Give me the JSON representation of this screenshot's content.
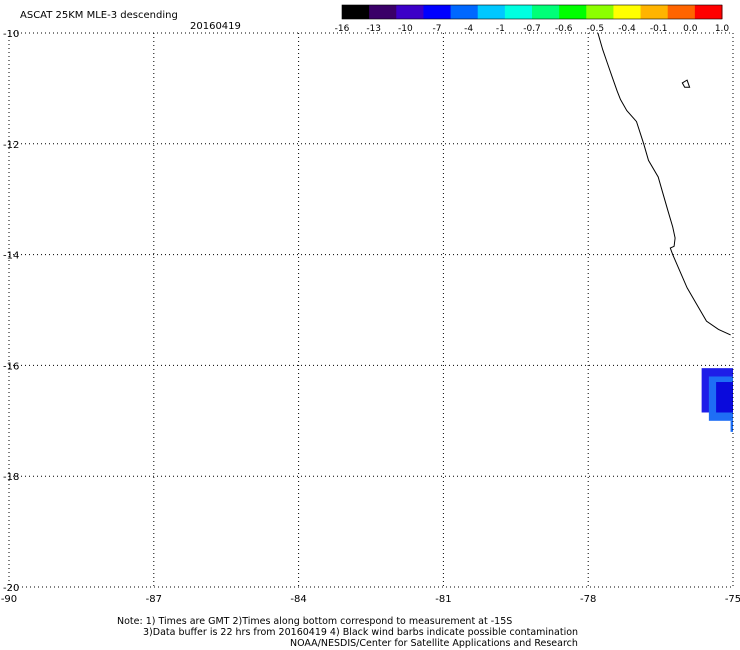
{
  "title": "ASCAT 25KM MLE-3 descending",
  "date": "20160419",
  "map": {
    "lon_range": [
      -90,
      -75
    ],
    "lat_range": [
      -20,
      -10
    ],
    "x_ticks": [
      -90,
      -87,
      -84,
      -81,
      -78,
      -75
    ],
    "x_tick_labels": [
      "-90",
      "-87",
      "-84",
      "-81",
      "-78",
      "-75"
    ],
    "y_ticks": [
      -10,
      -12,
      -14,
      -16,
      -18,
      -20
    ],
    "y_tick_labels": [
      "-10",
      "-12",
      "-14",
      "-16",
      "-18",
      "-20"
    ],
    "grid": "dotted",
    "coastline": [
      [
        -77.8,
        -10.0
      ],
      [
        -77.7,
        -10.3
      ],
      [
        -77.6,
        -10.55
      ],
      [
        -77.5,
        -10.8
      ],
      [
        -77.4,
        -11.05
      ],
      [
        -77.33,
        -11.2
      ],
      [
        -77.2,
        -11.4
      ],
      [
        -77.0,
        -11.6
      ],
      [
        -76.85,
        -12.0
      ],
      [
        -76.75,
        -12.3
      ],
      [
        -76.55,
        -12.6
      ],
      [
        -76.45,
        -12.9
      ],
      [
        -76.35,
        -13.2
      ],
      [
        -76.25,
        -13.5
      ],
      [
        -76.2,
        -13.7
      ],
      [
        -76.22,
        -13.85
      ],
      [
        -76.3,
        -13.88
      ],
      [
        -76.25,
        -14.0
      ],
      [
        -76.1,
        -14.3
      ],
      [
        -75.95,
        -14.6
      ],
      [
        -75.75,
        -14.9
      ],
      [
        -75.55,
        -15.2
      ],
      [
        -75.3,
        -15.35
      ],
      [
        -75.05,
        -15.45
      ]
    ],
    "island": [
      [
        -76.05,
        -10.9
      ],
      [
        -75.95,
        -10.85
      ],
      [
        -75.9,
        -10.98
      ],
      [
        -76.0,
        -10.98
      ]
    ],
    "swath_cells": [
      {
        "lon": [
          -75.65,
          -75.0
        ],
        "lat": [
          -16.05,
          -16.85
        ],
        "color": "#1e1ee8"
      },
      {
        "lon": [
          -75.5,
          -75.0
        ],
        "lat": [
          -16.2,
          -17.0
        ],
        "color": "#1e6ef5"
      },
      {
        "lon": [
          -75.35,
          -75.0
        ],
        "lat": [
          -16.3,
          -16.85
        ],
        "color": "#0a0adc"
      },
      {
        "lon": [
          -75.05,
          -75.0
        ],
        "lat": [
          -17.0,
          -17.2
        ],
        "color": "#1e6ef5"
      }
    ]
  },
  "colorbar": {
    "labels": [
      "-16",
      "-13",
      "-10",
      "-7",
      "-4",
      "-1",
      "-0.7",
      "-0.6",
      "-0.5",
      "-0.4",
      "-0.1",
      "0.0",
      "1.0"
    ],
    "colors": [
      "#000000",
      "#3a0068",
      "#3c00c8",
      "#0000ff",
      "#0068ff",
      "#00c8ff",
      "#00ffe0",
      "#00ff78",
      "#00ff00",
      "#8cff00",
      "#ffff00",
      "#ffb400",
      "#ff6400",
      "#ff0000"
    ]
  },
  "notes": {
    "line1": "Note: 1) Times are GMT 2)Times along bottom correspond to measurement at -15S",
    "line2": "3)Data buffer is 22 hrs from 20160419 4) Black wind barbs indicate possible contamination",
    "line3": "NOAA/NESDIS/Center for Satellite Applications and Research"
  }
}
